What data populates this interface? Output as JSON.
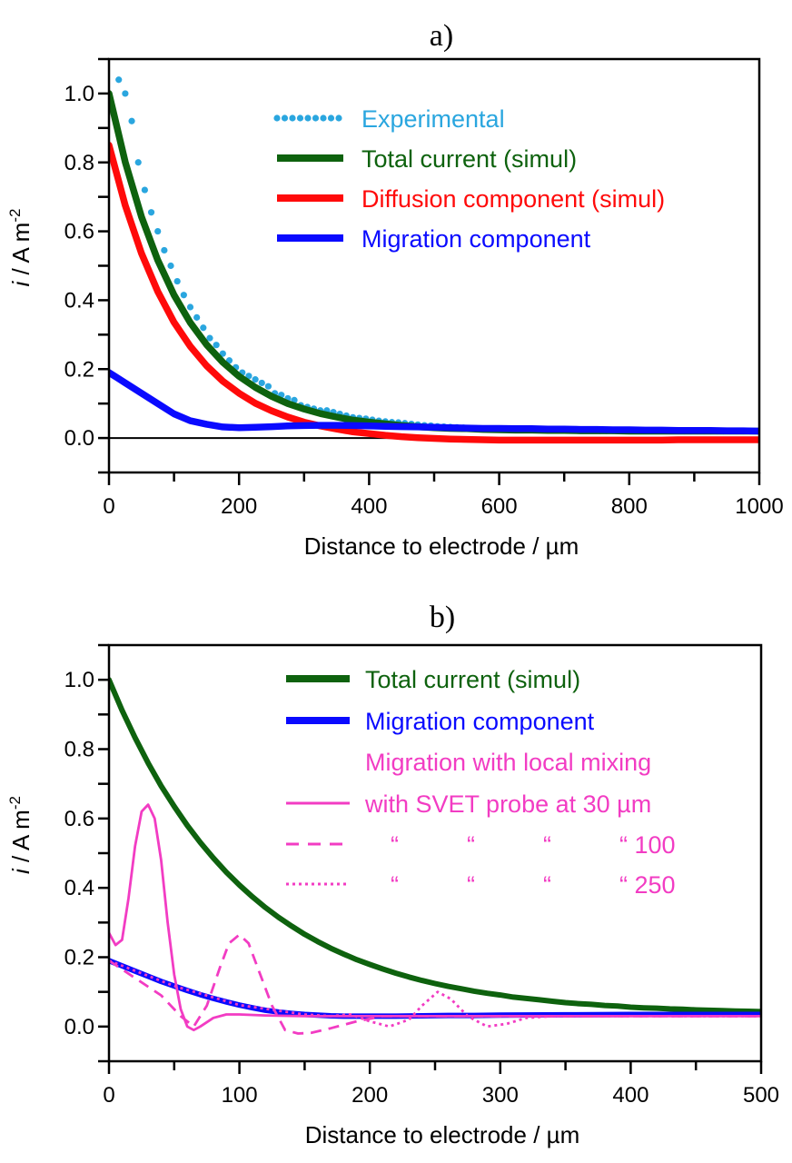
{
  "chart_data": [
    {
      "type": "line",
      "title": "a)",
      "xlabel": "Distance to electrode / µm",
      "ylabel": {
        "italic": "i",
        "text": " / A m",
        "superscript": "-2"
      },
      "xlim": [
        0,
        1000
      ],
      "ylim": [
        -0.1,
        1.1
      ],
      "x_ticks": [
        "0",
        "200",
        "400",
        "600",
        "800",
        "1000"
      ],
      "y_ticks": [
        "0.0",
        "0.2",
        "0.4",
        "0.6",
        "0.8",
        "1.0"
      ],
      "zero_line": true,
      "grid": false,
      "legend_position": "top-right",
      "series": [
        {
          "name": "Experimental",
          "style": "dots",
          "color": "#2aa6df",
          "x": [
            15,
            25,
            35,
            45,
            55,
            65,
            75,
            85,
            95,
            105,
            115,
            125,
            135,
            145,
            155,
            165,
            175,
            185,
            195,
            205,
            215,
            225,
            235,
            245,
            255,
            265,
            275,
            285,
            295,
            305,
            315,
            325,
            335,
            345,
            355,
            365,
            375,
            385,
            395,
            405,
            415,
            425,
            435,
            445,
            455,
            465,
            475,
            485,
            495,
            505,
            515,
            525,
            535,
            545,
            555,
            565,
            575,
            585,
            595,
            605,
            615,
            625,
            635,
            645,
            655,
            665,
            675,
            685,
            695,
            705,
            715,
            725,
            735,
            745,
            755,
            765,
            775,
            785,
            795,
            805,
            815,
            825,
            835,
            845,
            855,
            865,
            875,
            885,
            895,
            905,
            915,
            925,
            935,
            945,
            955,
            965,
            975,
            985,
            995
          ],
          "y": [
            1.04,
            1.0,
            0.92,
            0.8,
            0.72,
            0.655,
            0.6,
            0.545,
            0.5,
            0.455,
            0.415,
            0.38,
            0.35,
            0.32,
            0.29,
            0.27,
            0.245,
            0.225,
            0.205,
            0.19,
            0.18,
            0.17,
            0.16,
            0.15,
            0.13,
            0.125,
            0.115,
            0.11,
            0.095,
            0.09,
            0.085,
            0.08,
            0.08,
            0.075,
            0.07,
            0.065,
            0.06,
            0.058,
            0.056,
            0.053,
            0.05,
            0.048,
            0.046,
            0.045,
            0.043,
            0.041,
            0.039,
            0.037,
            0.036,
            0.034,
            0.033,
            0.032,
            0.031,
            0.03,
            0.029,
            0.028,
            0.027,
            0.027,
            0.026,
            0.026,
            0.025,
            0.025,
            0.024,
            0.024,
            0.023,
            0.023,
            0.023,
            0.022,
            0.022,
            0.022,
            0.022,
            0.022,
            0.022,
            0.022,
            0.021,
            0.021,
            0.021,
            0.021,
            0.021,
            0.021,
            0.021,
            0.021,
            0.021,
            0.021,
            0.021,
            0.021,
            0.021,
            0.02,
            0.02,
            0.02,
            0.02,
            0.02,
            0.02,
            0.02,
            0.02,
            0.02,
            0.02,
            0.02,
            0.02
          ]
        },
        {
          "name": "Total current (simul)",
          "style": "solid-thick",
          "color": "#0e620e",
          "x": [
            0,
            25,
            50,
            75,
            100,
            125,
            150,
            175,
            200,
            225,
            250,
            275,
            300,
            325,
            350,
            375,
            400,
            425,
            450,
            475,
            500,
            525,
            550,
            575,
            600,
            625,
            650,
            675,
            700,
            725,
            750,
            775,
            800,
            825,
            850,
            875,
            900,
            925,
            950,
            975,
            1000
          ],
          "y": [
            1.0,
            0.801,
            0.642,
            0.516,
            0.415,
            0.335,
            0.271,
            0.22,
            0.179,
            0.147,
            0.121,
            0.1,
            0.084,
            0.071,
            0.061,
            0.052,
            0.046,
            0.041,
            0.036,
            0.033,
            0.03,
            0.028,
            0.027,
            0.025,
            0.024,
            0.023,
            0.023,
            0.022,
            0.022,
            0.021,
            0.021,
            0.021,
            0.02,
            0.02,
            0.02,
            0.02,
            0.02,
            0.02,
            0.02,
            0.02,
            0.02
          ]
        },
        {
          "name": "Diffusion component (simul)",
          "style": "solid-thick",
          "color": "#ff0a0a",
          "x": [
            0,
            25,
            50,
            75,
            100,
            125,
            150,
            175,
            200,
            225,
            250,
            275,
            300,
            325,
            350,
            375,
            400,
            425,
            450,
            475,
            500,
            525,
            550,
            575,
            600,
            625,
            650,
            675,
            700,
            725,
            750,
            775,
            800,
            825,
            850,
            875,
            900,
            925,
            950,
            975,
            1000
          ],
          "y": [
            0.85,
            0.675,
            0.536,
            0.425,
            0.336,
            0.266,
            0.21,
            0.165,
            0.13,
            0.101,
            0.079,
            0.061,
            0.046,
            0.035,
            0.026,
            0.018,
            0.013,
            0.008,
            0.004,
            0.001,
            -0.001,
            -0.003,
            -0.004,
            -0.005,
            -0.006,
            -0.006,
            -0.006,
            -0.006,
            -0.006,
            -0.006,
            -0.006,
            -0.006,
            -0.006,
            -0.006,
            -0.006,
            -0.005,
            -0.005,
            -0.005,
            -0.005,
            -0.005,
            -0.005
          ]
        },
        {
          "name": "Migration component",
          "style": "solid-thick",
          "color": "#0a0aff",
          "x": [
            0,
            25,
            50,
            75,
            100,
            125,
            150,
            175,
            200,
            225,
            250,
            275,
            300,
            325,
            350,
            375,
            400,
            425,
            450,
            475,
            500,
            525,
            550,
            575,
            600,
            625,
            650,
            675,
            700,
            725,
            750,
            775,
            800,
            825,
            850,
            875,
            900,
            925,
            950,
            975,
            1000
          ],
          "y": [
            0.19,
            0.16,
            0.13,
            0.1,
            0.07,
            0.05,
            0.04,
            0.032,
            0.03,
            0.031,
            0.033,
            0.035,
            0.036,
            0.037,
            0.037,
            0.036,
            0.035,
            0.034,
            0.033,
            0.032,
            0.031,
            0.03,
            0.029,
            0.028,
            0.028,
            0.027,
            0.027,
            0.026,
            0.026,
            0.025,
            0.025,
            0.024,
            0.024,
            0.023,
            0.023,
            0.022,
            0.022,
            0.022,
            0.021,
            0.021,
            0.02
          ]
        }
      ]
    },
    {
      "type": "line",
      "title": "b)",
      "xlabel": "Distance to electrode / µm",
      "ylabel": {
        "italic": "i",
        "text": " / A m",
        "superscript": "-2"
      },
      "xlim": [
        0,
        500
      ],
      "ylim": [
        -0.1,
        1.1
      ],
      "x_ticks": [
        "0",
        "100",
        "200",
        "300",
        "400",
        "500"
      ],
      "y_ticks": [
        "0.0",
        "0.2",
        "0.4",
        "0.6",
        "0.8",
        "1.0"
      ],
      "zero_line": false,
      "grid": false,
      "legend_position": "top-right",
      "legend_header": "Migration with local mixing",
      "series": [
        {
          "name": "Total current (simul)",
          "style": "solid-thick",
          "color": "#0e620e",
          "x": [
            0,
            10,
            20,
            30,
            40,
            50,
            60,
            70,
            80,
            90,
            100,
            110,
            120,
            130,
            140,
            150,
            160,
            170,
            180,
            190,
            200,
            210,
            220,
            230,
            240,
            250,
            260,
            270,
            280,
            290,
            300,
            310,
            320,
            330,
            340,
            350,
            360,
            370,
            380,
            390,
            400,
            410,
            420,
            430,
            440,
            450,
            460,
            470,
            480,
            490,
            500
          ],
          "y": [
            1.0,
            0.912,
            0.833,
            0.76,
            0.694,
            0.635,
            0.58,
            0.531,
            0.486,
            0.445,
            0.408,
            0.374,
            0.343,
            0.315,
            0.29,
            0.266,
            0.245,
            0.226,
            0.209,
            0.193,
            0.179,
            0.166,
            0.154,
            0.143,
            0.133,
            0.124,
            0.116,
            0.109,
            0.102,
            0.096,
            0.091,
            0.085,
            0.081,
            0.077,
            0.073,
            0.069,
            0.066,
            0.064,
            0.061,
            0.059,
            0.056,
            0.054,
            0.053,
            0.051,
            0.05,
            0.048,
            0.047,
            0.046,
            0.045,
            0.044,
            0.043
          ]
        },
        {
          "name": "Migration component",
          "style": "solid-thick",
          "color": "#0a0aff",
          "x": [
            0,
            10,
            20,
            30,
            40,
            50,
            60,
            70,
            80,
            90,
            100,
            110,
            120,
            130,
            140,
            150,
            160,
            170,
            180,
            190,
            200,
            220,
            240,
            260,
            280,
            300,
            350,
            400,
            450,
            500
          ],
          "y": [
            0.19,
            0.175,
            0.16,
            0.145,
            0.13,
            0.117,
            0.104,
            0.092,
            0.081,
            0.071,
            0.062,
            0.054,
            0.047,
            0.042,
            0.038,
            0.035,
            0.033,
            0.031,
            0.03,
            0.03,
            0.03,
            0.03,
            0.031,
            0.032,
            0.032,
            0.033,
            0.034,
            0.035,
            0.035,
            0.035
          ]
        },
        {
          "name": "with SVET probe at 30 µm",
          "style": "solid-thin",
          "color": "#f23cc3",
          "x": [
            0,
            5,
            10,
            15,
            20,
            25,
            30,
            35,
            40,
            45,
            50,
            55,
            60,
            65,
            70,
            80,
            90,
            100,
            120,
            150,
            200,
            250,
            300,
            350,
            400,
            450,
            500
          ],
          "y": [
            0.27,
            0.235,
            0.25,
            0.37,
            0.52,
            0.62,
            0.64,
            0.6,
            0.48,
            0.3,
            0.15,
            0.05,
            0.0,
            -0.01,
            0.0,
            0.025,
            0.035,
            0.035,
            0.032,
            0.03,
            0.03,
            0.03,
            0.03,
            0.03,
            0.03,
            0.03,
            0.03
          ]
        },
        {
          "name": "100",
          "style": "dashed",
          "color": "#f23cc3",
          "x": [
            0,
            20,
            40,
            55,
            65,
            75,
            85,
            92,
            100,
            107,
            115,
            125,
            135,
            145,
            155,
            170,
            190,
            210,
            250,
            300,
            400,
            500
          ],
          "y": [
            0.19,
            0.14,
            0.09,
            0.03,
            0.0,
            0.06,
            0.17,
            0.24,
            0.265,
            0.24,
            0.16,
            0.06,
            -0.01,
            -0.02,
            -0.018,
            -0.005,
            0.015,
            0.03,
            0.03,
            0.03,
            0.03,
            0.03
          ]
        },
        {
          "name": "250",
          "style": "dotted",
          "color": "#f23cc3",
          "x": [
            0,
            50,
            100,
            150,
            170,
            185,
            200,
            215,
            230,
            240,
            252,
            262,
            275,
            290,
            305,
            320,
            340,
            400,
            500
          ],
          "y": [
            0.19,
            0.117,
            0.062,
            0.035,
            0.03,
            0.035,
            0.015,
            0.0,
            0.02,
            0.06,
            0.1,
            0.08,
            0.03,
            0.0,
            0.008,
            0.025,
            0.03,
            0.03,
            0.03
          ]
        }
      ],
      "legend_ditto": "“          “          “          “ "
    }
  ]
}
